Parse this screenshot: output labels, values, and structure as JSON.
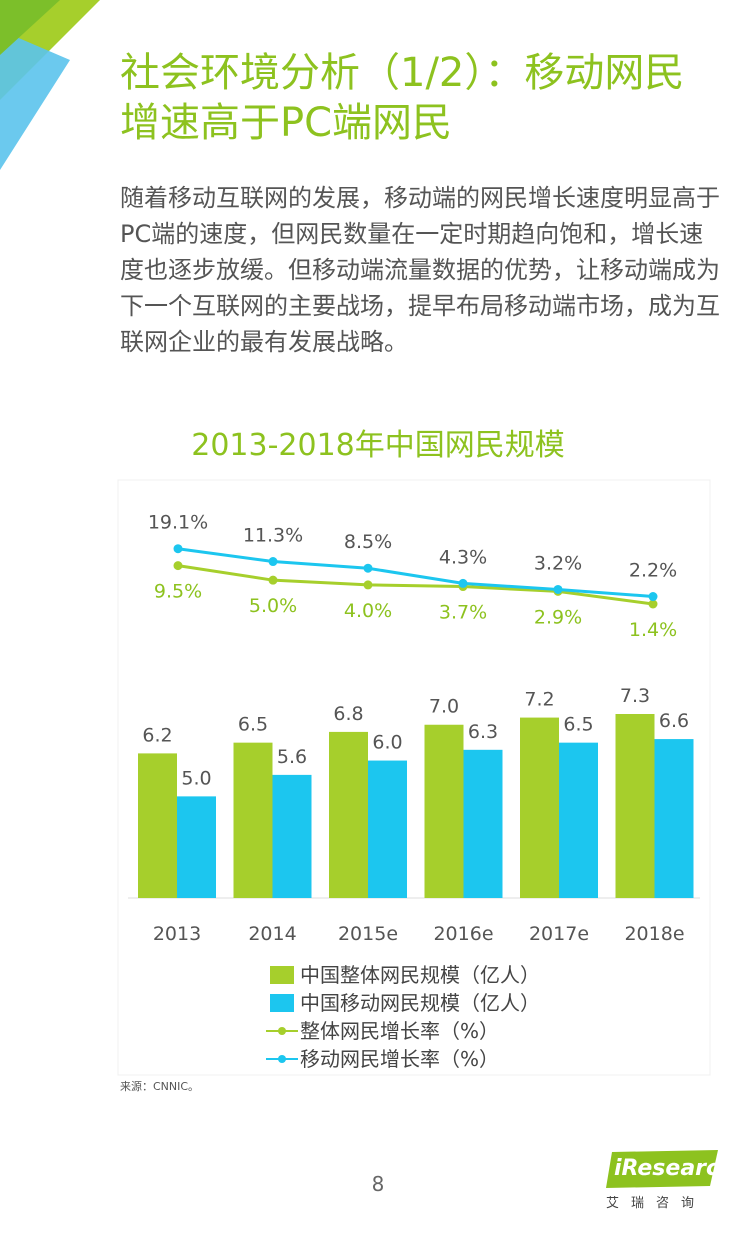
{
  "page": {
    "title": "社会环境分析（1/2）：移动网民增速高于PC端网民",
    "body": "随着移动互联网的发展，移动端的网民增长速度明显高于PC端的速度，但网民数量在一定时期趋向饱和，增长速度也逐步放缓。但移动端流量数据的优势，让移动端成为下一个互联网的主要战场，提早布局移动端市场，成为互联网企业的最有发展战略。",
    "source": "来源：CNNIC。",
    "page_number": "8",
    "logo_text": "iResearch",
    "logo_sub": "艾瑞咨询"
  },
  "colors": {
    "green": "#a6cf2c",
    "blue": "#1cc6ef",
    "title_green": "#8dc21f",
    "text_gray": "#555555"
  },
  "chart_data": {
    "type": "bar",
    "title": "2013-2018年中国网民规模",
    "categories": [
      "2013",
      "2014",
      "2015e",
      "2016e",
      "2017e",
      "2018e"
    ],
    "series": [
      {
        "name": "中国整体网民规模（亿人）",
        "type": "bar",
        "color": "#a6cf2c",
        "values": [
          6.2,
          6.5,
          6.8,
          7.0,
          7.2,
          7.3
        ],
        "labels": [
          "6.2",
          "6.5",
          "6.8",
          "7.0",
          "7.2",
          "7.3"
        ]
      },
      {
        "name": "中国移动网民规模（亿人）",
        "type": "bar",
        "color": "#1cc6ef",
        "values": [
          5.0,
          5.6,
          6.0,
          6.3,
          6.5,
          6.6
        ],
        "labels": [
          "5.0",
          "5.6",
          "6.0",
          "6.3",
          "6.5",
          "6.6"
        ]
      },
      {
        "name": "整体网民增长率（%）",
        "type": "line",
        "color": "#a6cf2c",
        "values": [
          9.5,
          5.0,
          4.0,
          3.7,
          2.9,
          1.4
        ],
        "labels": [
          "9.5%",
          "5.0%",
          "4.0%",
          "3.7%",
          "2.9%",
          "1.4%"
        ]
      },
      {
        "name": "移动网民增长率（%）",
        "type": "line",
        "color": "#1cc6ef",
        "values": [
          19.1,
          11.3,
          8.5,
          4.3,
          3.2,
          2.2
        ],
        "labels": [
          "19.1%",
          "11.3%",
          "8.5%",
          "4.3%",
          "3.2%",
          "2.2%"
        ]
      }
    ],
    "legend_position": "bottom-left",
    "grid": false
  }
}
